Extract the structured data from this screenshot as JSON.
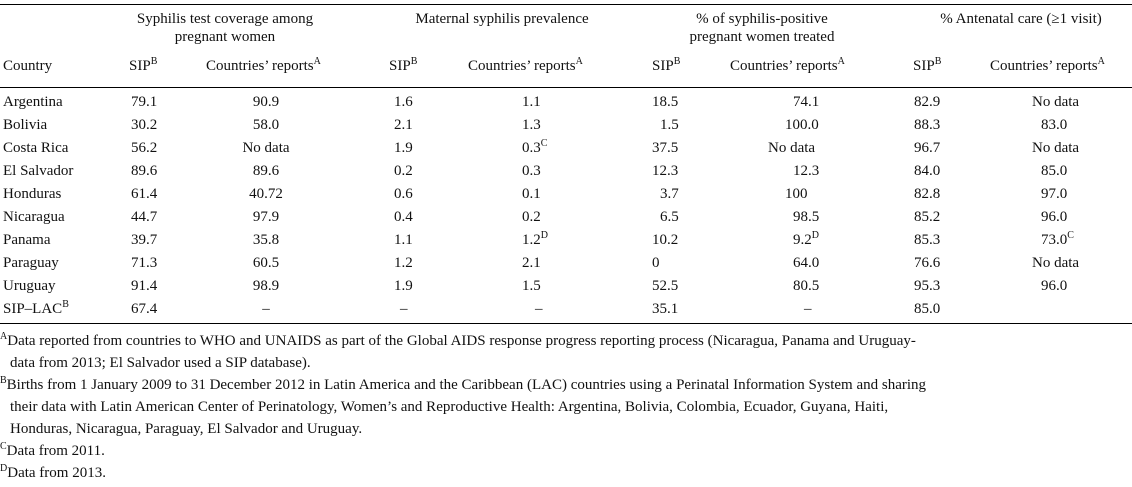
{
  "table": {
    "group_headers": {
      "coverage": [
        "Syphilis test coverage among",
        "pregnant women"
      ],
      "prevalence": [
        "Maternal syphilis prevalence"
      ],
      "treated": [
        "% of syphilis-positive",
        "pregnant women treated"
      ],
      "anc": [
        "% Antenatal care (≥1 visit)"
      ]
    },
    "col_country": "Country",
    "col_sip": "SIP",
    "col_reports": "Countries’ reports",
    "sup_sip": "B",
    "sup_reports": "A",
    "rows": [
      {
        "country": "Argentina",
        "country_sup": "",
        "v": [
          [
            "79.1",
            ""
          ],
          [
            "90.9",
            ""
          ],
          [
            "1.6",
            ""
          ],
          [
            "1.1",
            ""
          ],
          [
            "18.5",
            ""
          ],
          [
            "74.1",
            ""
          ],
          [
            "82.9",
            ""
          ],
          [
            "No data",
            ""
          ]
        ]
      },
      {
        "country": "Bolivia",
        "country_sup": "",
        "v": [
          [
            "30.2",
            ""
          ],
          [
            "58.0",
            ""
          ],
          [
            "2.1",
            ""
          ],
          [
            "1.3",
            ""
          ],
          [
            "1.5",
            ""
          ],
          [
            "100.0",
            ""
          ],
          [
            "88.3",
            ""
          ],
          [
            "83.0",
            ""
          ]
        ]
      },
      {
        "country": "Costa Rica",
        "country_sup": "",
        "v": [
          [
            "56.2",
            ""
          ],
          [
            "No data",
            ""
          ],
          [
            "1.9",
            ""
          ],
          [
            "0.3",
            "C"
          ],
          [
            "37.5",
            ""
          ],
          [
            "No data",
            ""
          ],
          [
            "96.7",
            ""
          ],
          [
            "No data",
            ""
          ]
        ]
      },
      {
        "country": "El Salvador",
        "country_sup": "",
        "v": [
          [
            "89.6",
            ""
          ],
          [
            "89.6",
            ""
          ],
          [
            "0.2",
            ""
          ],
          [
            "0.3",
            ""
          ],
          [
            "12.3",
            ""
          ],
          [
            "12.3",
            ""
          ],
          [
            "84.0",
            ""
          ],
          [
            "85.0",
            ""
          ]
        ]
      },
      {
        "country": "Honduras",
        "country_sup": "",
        "v": [
          [
            "61.4",
            ""
          ],
          [
            "40.72",
            ""
          ],
          [
            "0.6",
            ""
          ],
          [
            "0.1",
            ""
          ],
          [
            "3.7",
            ""
          ],
          [
            "100",
            ""
          ],
          [
            "82.8",
            ""
          ],
          [
            "97.0",
            ""
          ]
        ]
      },
      {
        "country": "Nicaragua",
        "country_sup": "",
        "v": [
          [
            "44.7",
            ""
          ],
          [
            "97.9",
            ""
          ],
          [
            "0.4",
            ""
          ],
          [
            "0.2",
            ""
          ],
          [
            "6.5",
            ""
          ],
          [
            "98.5",
            ""
          ],
          [
            "85.2",
            ""
          ],
          [
            "96.0",
            ""
          ]
        ]
      },
      {
        "country": "Panama",
        "country_sup": "",
        "v": [
          [
            "39.7",
            ""
          ],
          [
            "35.8",
            ""
          ],
          [
            "1.1",
            ""
          ],
          [
            "1.2",
            "D"
          ],
          [
            "10.2",
            ""
          ],
          [
            "9.2",
            "D"
          ],
          [
            "85.3",
            ""
          ],
          [
            "73.0",
            "C"
          ]
        ]
      },
      {
        "country": "Paraguay",
        "country_sup": "",
        "v": [
          [
            "71.3",
            ""
          ],
          [
            "60.5",
            ""
          ],
          [
            "1.2",
            ""
          ],
          [
            "2.1",
            ""
          ],
          [
            "0",
            ""
          ],
          [
            "64.0",
            ""
          ],
          [
            "76.6",
            ""
          ],
          [
            "No data",
            ""
          ]
        ]
      },
      {
        "country": "Uruguay",
        "country_sup": "",
        "v": [
          [
            "91.4",
            ""
          ],
          [
            "98.9",
            ""
          ],
          [
            "1.9",
            ""
          ],
          [
            "1.5",
            ""
          ],
          [
            "52.5",
            ""
          ],
          [
            "80.5",
            ""
          ],
          [
            "95.3",
            ""
          ],
          [
            "96.0",
            ""
          ]
        ]
      },
      {
        "country": "SIP–LAC",
        "country_sup": "B",
        "v": [
          [
            "67.4",
            ""
          ],
          [
            "–",
            ""
          ],
          [
            "–",
            ""
          ],
          [
            "–",
            ""
          ],
          [
            "35.1",
            ""
          ],
          [
            "–",
            ""
          ],
          [
            "85.0",
            ""
          ],
          [
            "",
            ""
          ]
        ]
      }
    ]
  },
  "footnotes": [
    {
      "mark": "A",
      "lines": [
        "Data reported from countries to WHO and UNAIDS as part of the Global AIDS response progress reporting process (Nicaragua, Panama and Uruguay-",
        "data from 2013; El Salvador used a SIP database)."
      ]
    },
    {
      "mark": "B",
      "lines": [
        "Births from 1 January 2009 to 31 December 2012 in Latin America and the Caribbean (LAC) countries using a Perinatal Information System and sharing",
        "their data with Latin American Center of Perinatology, Women’s and Reproductive Health: Argentina, Bolivia, Colombia, Ecuador, Guyana, Haiti,",
        "Honduras, Nicaragua, Paraguay, El Salvador and Uruguay."
      ]
    },
    {
      "mark": "C",
      "lines": [
        "Data from 2011."
      ]
    },
    {
      "mark": "D",
      "lines": [
        "Data from 2013."
      ]
    }
  ]
}
